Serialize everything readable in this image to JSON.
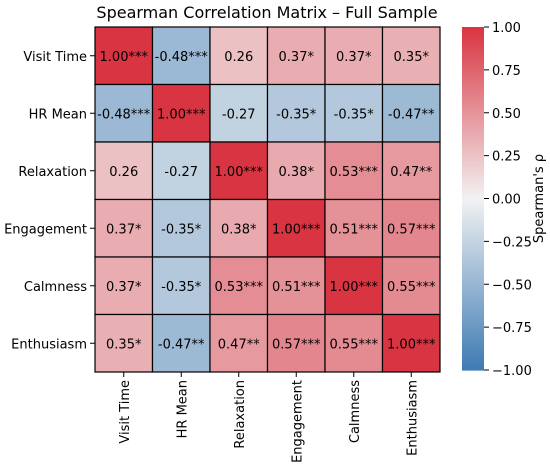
{
  "chart_data": {
    "type": "heatmap",
    "title": "Spearman Correlation Matrix – Full Sample",
    "variables": [
      "Visit Time",
      "HR Mean",
      "Relaxation",
      "Engagement",
      "Calmness",
      "Enthusiasm"
    ],
    "values": [
      [
        1.0,
        -0.48,
        0.26,
        0.37,
        0.37,
        0.35
      ],
      [
        -0.48,
        1.0,
        -0.27,
        -0.35,
        -0.35,
        -0.47
      ],
      [
        0.26,
        -0.27,
        1.0,
        0.38,
        0.53,
        0.47
      ],
      [
        0.37,
        -0.35,
        0.38,
        1.0,
        0.51,
        0.57
      ],
      [
        0.37,
        -0.35,
        0.53,
        0.51,
        1.0,
        0.55
      ],
      [
        0.35,
        -0.47,
        0.47,
        0.57,
        0.55,
        1.0
      ]
    ],
    "annotations": [
      [
        "1.00***",
        "-0.48***",
        "0.26",
        "0.37*",
        "0.37*",
        "0.35*"
      ],
      [
        "-0.48***",
        "1.00***",
        "-0.27",
        "-0.35*",
        "-0.35*",
        "-0.47**"
      ],
      [
        "0.26",
        "-0.27",
        "1.00***",
        "0.38*",
        "0.53***",
        "0.47**"
      ],
      [
        "0.37*",
        "-0.35*",
        "0.38*",
        "1.00***",
        "0.51***",
        "0.57***"
      ],
      [
        "0.37*",
        "-0.35*",
        "0.53***",
        "0.51***",
        "1.00***",
        "0.55***"
      ],
      [
        "0.35*",
        "-0.47**",
        "0.47**",
        "0.57***",
        "0.55***",
        "1.00***"
      ]
    ],
    "colorbar": {
      "label": "Spearman's ρ",
      "range": [
        -1.0,
        1.0
      ],
      "ticks": [
        "1.00",
        "0.75",
        "0.50",
        "0.25",
        "0.00",
        "−0.25",
        "−0.50",
        "−0.75",
        "−1.00"
      ],
      "low_color": "#3d7ab3",
      "mid_color": "#f2f2f2",
      "high_color": "#d93441"
    },
    "grid_line_color": "#000000"
  }
}
